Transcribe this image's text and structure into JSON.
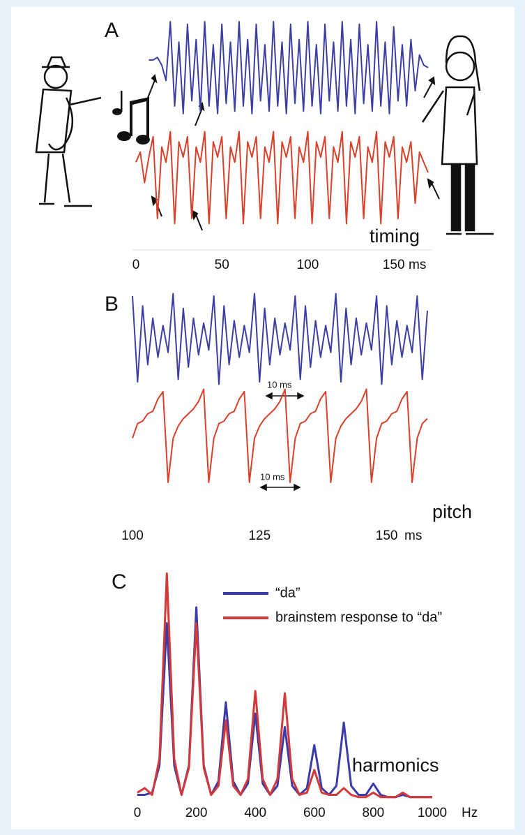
{
  "chart_data": [
    {
      "type": "line",
      "label": "A",
      "xlabel": "ms",
      "annotations": [
        "timing"
      ],
      "xlim": [
        0,
        170
      ],
      "xticks": [
        0,
        50,
        100,
        150
      ],
      "ylim": [
        -3.2,
        1.1
      ],
      "x": [
        0,
        2.5,
        5,
        7.5,
        10,
        12.5,
        15,
        17.5,
        20,
        22.5,
        25,
        27.5,
        30,
        32.5,
        35,
        37.5,
        40,
        42.5,
        45,
        47.5,
        50,
        52.5,
        55,
        57.5,
        60,
        62.5,
        65,
        67.5,
        70,
        72.5,
        75,
        77.5,
        80,
        82.5,
        85,
        87.5,
        90,
        92.5,
        95,
        97.5,
        100,
        102.5,
        105,
        107.5,
        110,
        112.5,
        115,
        117.5,
        120,
        122.5,
        125,
        127.5,
        130,
        132.5,
        135,
        137.5,
        140,
        142.5,
        145,
        147.5,
        150,
        152.5,
        155,
        157.5,
        160,
        162.5,
        165,
        167.5,
        170
      ],
      "series": [
        {
          "color": "#3b3fa3",
          "values": [
            null,
            null,
            null,
            0.2,
            0.2,
            0.25,
            0.1,
            -0.2,
            0.95,
            -0.7,
            0.55,
            -0.85,
            0.9,
            -0.6,
            0.6,
            -0.8,
            0.95,
            -0.7,
            0.5,
            -0.85,
            0.9,
            -0.65,
            0.55,
            -0.8,
            0.95,
            -0.7,
            0.6,
            -0.85,
            0.9,
            -0.6,
            0.5,
            -0.8,
            0.95,
            -0.7,
            0.55,
            -0.85,
            0.9,
            -0.65,
            0.6,
            -0.8,
            0.95,
            -0.7,
            0.5,
            -0.85,
            0.9,
            -0.6,
            0.55,
            -0.8,
            0.95,
            -0.7,
            0.6,
            -0.85,
            0.9,
            -0.65,
            0.5,
            -0.8,
            0.95,
            -0.7,
            0.55,
            -0.85,
            0.85,
            -0.6,
            0.5,
            -0.7,
            0.6,
            -0.4,
            0.3,
            0.1,
            0.05
          ]
        },
        {
          "color": "#d8402a",
          "values": [
            -1.8,
            -1.6,
            -2.2,
            -1.7,
            -1.3,
            -2.9,
            -1.5,
            -1.8,
            -1.2,
            -3.0,
            -1.4,
            -1.7,
            -1.3,
            -2.9,
            -1.5,
            -1.8,
            -1.2,
            -3.0,
            -1.4,
            -1.7,
            -1.3,
            -2.9,
            -1.5,
            -1.8,
            -1.2,
            -3.0,
            -1.4,
            -1.7,
            -1.3,
            -2.9,
            -1.5,
            -1.8,
            -1.2,
            -3.0,
            -1.4,
            -1.7,
            -1.3,
            -2.9,
            -1.5,
            -1.8,
            -1.2,
            -3.0,
            -1.4,
            -1.7,
            -1.3,
            -2.9,
            -1.5,
            -1.8,
            -1.2,
            -3.0,
            -1.4,
            -1.7,
            -1.3,
            -2.9,
            -1.5,
            -1.8,
            -1.2,
            -3.0,
            -1.4,
            -1.7,
            -1.3,
            -2.9,
            -1.5,
            -1.8,
            -1.4,
            -2.6,
            -1.6,
            -1.8,
            -2.0
          ]
        }
      ]
    },
    {
      "type": "line",
      "label": "B",
      "xlabel": "ms",
      "annotations": [
        "pitch",
        "10 ms",
        "10 ms"
      ],
      "xlim": [
        100,
        158
      ],
      "xticks": [
        100,
        125,
        150
      ],
      "ylim": [
        -3.2,
        1.1
      ],
      "x": [
        100,
        101,
        102,
        103,
        104,
        105,
        106,
        107,
        108,
        109,
        110,
        111,
        112,
        113,
        114,
        115,
        116,
        117,
        118,
        119,
        120,
        121,
        122,
        123,
        124,
        125,
        126,
        127,
        128,
        129,
        130,
        131,
        132,
        133,
        134,
        135,
        136,
        137,
        138,
        139,
        140,
        141,
        142,
        143,
        144,
        145,
        146,
        147,
        148,
        149,
        150,
        151,
        152,
        153,
        154,
        155,
        156,
        157,
        158
      ],
      "series": [
        {
          "color": "#3b3fa3",
          "values": [
            0.9,
            -0.85,
            0.7,
            -0.5,
            0.45,
            -0.35,
            0.3,
            -0.25,
            0.95,
            -0.8,
            0.65,
            -0.55,
            0.45,
            -0.3,
            0.35,
            -0.2,
            0.9,
            -0.9,
            0.7,
            -0.5,
            0.4,
            -0.35,
            0.3,
            -0.25,
            0.95,
            -0.85,
            0.65,
            -0.5,
            0.45,
            -0.3,
            0.35,
            -0.2,
            0.9,
            -0.8,
            0.7,
            -0.55,
            0.4,
            -0.35,
            0.3,
            -0.25,
            0.95,
            -0.85,
            0.65,
            -0.5,
            0.45,
            -0.3,
            0.35,
            -0.2,
            0.9,
            -0.9,
            0.7,
            -0.5,
            0.4,
            -0.35,
            0.3,
            -0.25,
            0.9,
            -0.8,
            0.6
          ]
        },
        {
          "color": "#d8402a",
          "values": [
            -2.0,
            -1.7,
            -1.65,
            -1.5,
            -1.45,
            -1.2,
            -1.05,
            -2.9,
            -2.0,
            -1.75,
            -1.6,
            -1.5,
            -1.4,
            -1.25,
            -1.0,
            -2.9,
            -2.0,
            -1.7,
            -1.65,
            -1.5,
            -1.45,
            -1.2,
            -1.05,
            -2.9,
            -2.0,
            -1.75,
            -1.6,
            -1.5,
            -1.4,
            -1.25,
            -1.0,
            -2.9,
            -2.0,
            -1.7,
            -1.65,
            -1.5,
            -1.45,
            -1.2,
            -1.05,
            -2.9,
            -2.0,
            -1.75,
            -1.6,
            -1.5,
            -1.4,
            -1.25,
            -1.0,
            -2.9,
            -2.0,
            -1.7,
            -1.65,
            -1.5,
            -1.45,
            -1.2,
            -1.05,
            -2.9,
            -2.0,
            -1.7,
            -1.6
          ]
        }
      ]
    },
    {
      "type": "line",
      "label": "C",
      "xlabel": "Hz",
      "annotations": [
        "harmonics"
      ],
      "xlim": [
        0,
        1000
      ],
      "xticks": [
        0,
        200,
        400,
        600,
        800,
        1000
      ],
      "ylim": [
        0,
        1.02
      ],
      "x": [
        0,
        25,
        50,
        75,
        100,
        125,
        150,
        175,
        200,
        225,
        250,
        275,
        300,
        325,
        350,
        375,
        400,
        425,
        450,
        475,
        500,
        525,
        550,
        575,
        600,
        625,
        650,
        675,
        700,
        725,
        750,
        775,
        800,
        825,
        850,
        875,
        900,
        925,
        950,
        975,
        1000
      ],
      "series": [
        {
          "name": "“da”",
          "color": "#3a3aa8",
          "values": [
            0.02,
            0.02,
            0.03,
            0.15,
            0.78,
            0.15,
            0.02,
            0.15,
            0.85,
            0.15,
            0.02,
            0.08,
            0.43,
            0.08,
            0.02,
            0.07,
            0.38,
            0.07,
            0.02,
            0.06,
            0.32,
            0.06,
            0.02,
            0.05,
            0.24,
            0.05,
            0.02,
            0.06,
            0.34,
            0.06,
            0.02,
            0.02,
            0.07,
            0.02,
            0.01,
            0.01,
            0.02,
            0.01,
            0.01,
            0.01,
            0.01
          ]
        },
        {
          "name": "brainstem response to “da”",
          "color": "#d23a3a",
          "values": [
            0.03,
            0.05,
            0.02,
            0.18,
            1.0,
            0.18,
            0.02,
            0.14,
            0.78,
            0.14,
            0.02,
            0.06,
            0.35,
            0.06,
            0.02,
            0.09,
            0.48,
            0.09,
            0.02,
            0.09,
            0.47,
            0.09,
            0.02,
            0.03,
            0.13,
            0.03,
            0.02,
            0.02,
            0.05,
            0.02,
            0.01,
            0.01,
            0.03,
            0.01,
            0.01,
            0.01,
            0.03,
            0.01,
            0.01,
            0.01,
            0.01
          ]
        }
      ]
    }
  ]
}
